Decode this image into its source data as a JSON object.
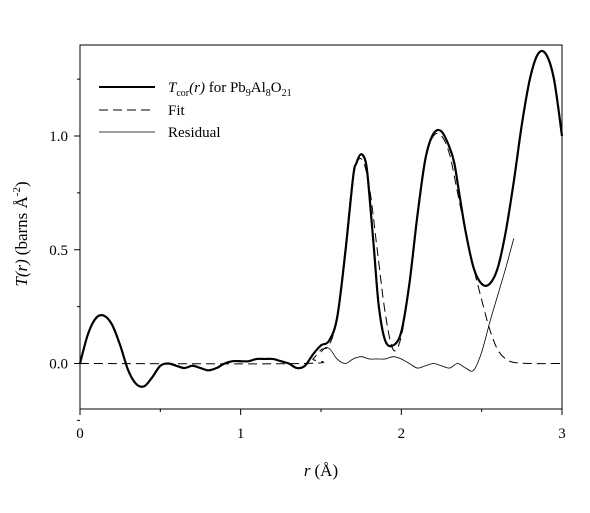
{
  "chart_data": {
    "type": "line",
    "title": "",
    "xlabel": {
      "var": "r",
      "unit": "(Å)"
    },
    "ylabel": {
      "var": "T(r)",
      "unit_prefix": "(barns Å",
      "unit_exp": "-2",
      "unit_suffix": ")"
    },
    "xlim": [
      0,
      3
    ],
    "ylim": [
      -0.2,
      1.4
    ],
    "xticks": [
      0,
      1,
      2,
      3
    ],
    "xtick_labels": [
      "0",
      "1",
      "2",
      "3"
    ],
    "xminor": [
      0.5,
      1.5,
      2.5
    ],
    "yticks": [
      0.0,
      0.5,
      1.0
    ],
    "ytick_labels": [
      "0.0",
      "0.5",
      "1.0"
    ],
    "yminor": [
      -0.25,
      0.25,
      0.75,
      1.25
    ],
    "grid": false,
    "legend_position": "top-left",
    "legend": {
      "tcor": {
        "var": "T",
        "sub": "cor",
        "arg": "(r)",
        "mid": " for Pb",
        "s1": "9",
        "e2": "Al",
        "s2": "8",
        "e3": "O",
        "s3": "21"
      },
      "fit": "Fit",
      "residual": "Residual"
    },
    "series": [
      {
        "key": "tcor",
        "style": "thick-solid",
        "x": [
          0.0,
          0.05,
          0.1,
          0.15,
          0.2,
          0.25,
          0.3,
          0.35,
          0.4,
          0.45,
          0.5,
          0.55,
          0.6,
          0.65,
          0.7,
          0.75,
          0.8,
          0.85,
          0.9,
          0.95,
          1.0,
          1.05,
          1.1,
          1.15,
          1.2,
          1.25,
          1.3,
          1.35,
          1.4,
          1.45,
          1.5,
          1.55,
          1.6,
          1.65,
          1.7,
          1.72,
          1.75,
          1.78,
          1.8,
          1.83,
          1.86,
          1.9,
          1.95,
          2.0,
          2.05,
          2.1,
          2.15,
          2.2,
          2.25,
          2.3,
          2.33,
          2.36,
          2.4,
          2.45,
          2.5,
          2.55,
          2.6,
          2.65,
          2.7,
          2.75,
          2.8,
          2.85,
          2.9,
          2.95,
          3.0
        ],
        "y": [
          0.0,
          0.13,
          0.2,
          0.21,
          0.17,
          0.08,
          -0.03,
          -0.09,
          -0.1,
          -0.06,
          -0.01,
          0.0,
          -0.01,
          -0.02,
          -0.01,
          -0.02,
          -0.03,
          -0.02,
          0.0,
          0.01,
          0.01,
          0.01,
          0.02,
          0.02,
          0.02,
          0.01,
          0.0,
          -0.02,
          -0.01,
          0.04,
          0.08,
          0.1,
          0.2,
          0.48,
          0.82,
          0.88,
          0.92,
          0.88,
          0.75,
          0.5,
          0.25,
          0.1,
          0.08,
          0.14,
          0.35,
          0.65,
          0.9,
          1.01,
          1.02,
          0.95,
          0.88,
          0.75,
          0.58,
          0.42,
          0.35,
          0.35,
          0.42,
          0.58,
          0.8,
          1.05,
          1.25,
          1.36,
          1.36,
          1.25,
          1.0
        ]
      },
      {
        "key": "fit",
        "style": "dashed",
        "x": [
          0.0,
          1.4,
          1.45,
          1.5,
          1.55,
          1.6,
          1.65,
          1.7,
          1.75,
          1.8,
          1.85,
          1.9,
          1.95,
          2.0,
          2.05,
          2.1,
          2.15,
          2.2,
          2.25,
          2.3,
          2.35,
          2.4,
          2.45,
          2.5,
          2.55,
          2.6,
          2.65,
          2.7,
          2.8,
          3.0
        ],
        "y": [
          0.0,
          0.0,
          0.02,
          0.06,
          0.08,
          0.2,
          0.5,
          0.82,
          0.9,
          0.78,
          0.5,
          0.22,
          0.06,
          0.12,
          0.35,
          0.65,
          0.9,
          1.0,
          1.0,
          0.92,
          0.75,
          0.58,
          0.42,
          0.28,
          0.15,
          0.06,
          0.02,
          0.005,
          0.0,
          0.0
        ]
      },
      {
        "key": "residual",
        "style": "thin-solid",
        "x": [
          1.5,
          1.53,
          1.56,
          1.6,
          1.65,
          1.7,
          1.75,
          1.8,
          1.85,
          1.9,
          1.95,
          2.0,
          2.05,
          2.1,
          2.15,
          2.2,
          2.25,
          2.3,
          2.35,
          2.4,
          2.45,
          2.5,
          2.55,
          2.6,
          2.65,
          2.7
        ],
        "y": [
          0.05,
          0.07,
          0.06,
          0.02,
          0.0,
          0.02,
          0.03,
          0.02,
          0.02,
          0.02,
          0.03,
          0.02,
          0.0,
          -0.02,
          -0.01,
          0.0,
          -0.01,
          -0.02,
          0.0,
          -0.02,
          -0.03,
          0.05,
          0.18,
          0.3,
          0.42,
          0.55
        ]
      }
    ]
  }
}
